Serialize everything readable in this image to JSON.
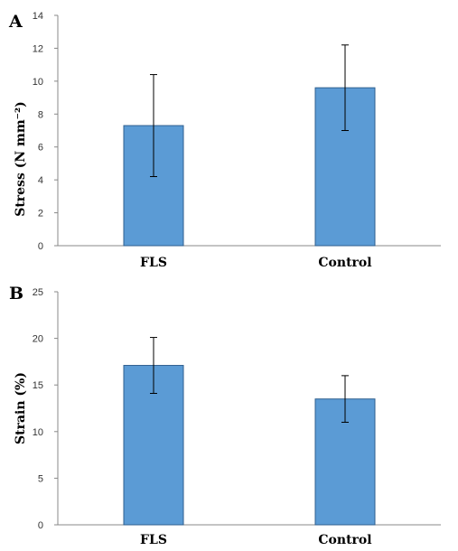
{
  "chart_data": [
    {
      "type": "bar",
      "panel_label": "A",
      "categories": [
        "FLS",
        "Control"
      ],
      "values": [
        7.3,
        9.6
      ],
      "errors": [
        3.1,
        2.6
      ],
      "ylabel": "Stress (N mm⁻²)",
      "ylim": [
        0,
        14
      ],
      "yticks": [
        0,
        2,
        4,
        6,
        8,
        10,
        12,
        14
      ],
      "grid": false,
      "bar_color": "#5b9bd5"
    },
    {
      "type": "bar",
      "panel_label": "B",
      "categories": [
        "FLS",
        "Control"
      ],
      "values": [
        17.1,
        13.5
      ],
      "errors": [
        3.0,
        2.5
      ],
      "ylabel": "Strain (%)",
      "ylim": [
        0,
        25
      ],
      "yticks": [
        0,
        5,
        10,
        15,
        20,
        25
      ],
      "grid": false,
      "bar_color": "#5b9bd5"
    }
  ]
}
